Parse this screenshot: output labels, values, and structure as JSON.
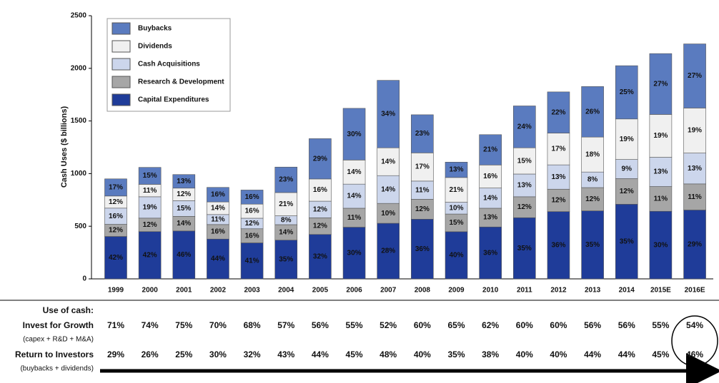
{
  "chart_data": {
    "type": "stacked_bar",
    "y_label": "Cash Uses ($ billions)",
    "categories": [
      "1999",
      "2000",
      "2001",
      "2002",
      "2003",
      "2004",
      "2005",
      "2006",
      "2007",
      "2008",
      "2009",
      "2010",
      "2011",
      "2012",
      "2013",
      "2014",
      "2015E",
      "2016E"
    ],
    "ylim": [
      0,
      2500
    ],
    "yticks": [
      0,
      500,
      1000,
      1500,
      2000,
      2500
    ],
    "grid": false,
    "legend": "upper left",
    "series": [
      {
        "name": "Capital Expenditures",
        "color": "#1f3c99",
        "values": [
          403,
          449,
          455,
          378,
          342,
          368,
          422,
          491,
          528,
          567,
          448,
          493,
          581,
          639,
          646,
          709,
          642,
          654
        ],
        "value_labels": [
          "42%",
          "42%",
          "46%",
          "44%",
          "41%",
          "35%",
          "32%",
          "30%",
          "28%",
          "36%",
          "40%",
          "36%",
          "35%",
          "36%",
          "35%",
          "35%",
          "30%",
          "29%"
        ]
      },
      {
        "name": "Research & Development",
        "color": "#a6a6a6",
        "values": [
          115,
          128,
          139,
          138,
          134,
          147,
          158,
          180,
          189,
          189,
          168,
          178,
          199,
          213,
          221,
          243,
          235,
          248
        ],
        "value_labels": [
          "12%",
          "12%",
          "14%",
          "16%",
          "16%",
          "14%",
          "12%",
          "11%",
          "10%",
          "12%",
          "15%",
          "13%",
          "12%",
          "12%",
          "12%",
          "12%",
          "11%",
          "11%"
        ]
      },
      {
        "name": "Cash Acquisitions",
        "color": "#ccd6ec",
        "values": [
          154,
          203,
          149,
          95,
          100,
          84,
          158,
          229,
          264,
          173,
          112,
          192,
          216,
          231,
          148,
          182,
          278,
          293
        ],
        "value_labels": [
          "16%",
          "19%",
          "15%",
          "11%",
          "12%",
          "8%",
          "12%",
          "14%",
          "14%",
          "11%",
          "10%",
          "14%",
          "13%",
          "13%",
          "8%",
          "9%",
          "13%",
          "13%"
        ]
      },
      {
        "name": "Dividends",
        "color": "#f0f0f0",
        "values": [
          115,
          118,
          119,
          120,
          134,
          221,
          211,
          229,
          264,
          268,
          235,
          219,
          249,
          302,
          332,
          385,
          407,
          428
        ],
        "value_labels": [
          "12%",
          "11%",
          "12%",
          "14%",
          "16%",
          "21%",
          "16%",
          "14%",
          "14%",
          "17%",
          "21%",
          "16%",
          "15%",
          "17%",
          "18%",
          "19%",
          "19%",
          "19%"
        ]
      },
      {
        "name": "Buybacks",
        "color": "#5a7bbf",
        "values": [
          163,
          161,
          129,
          138,
          134,
          242,
          383,
          491,
          641,
          362,
          146,
          288,
          398,
          391,
          480,
          506,
          578,
          609
        ],
        "value_labels": [
          "17%",
          "15%",
          "13%",
          "16%",
          "16%",
          "23%",
          "29%",
          "30%",
          "34%",
          "23%",
          "13%",
          "21%",
          "24%",
          "22%",
          "26%",
          "25%",
          "27%",
          "27%"
        ]
      }
    ]
  },
  "table": {
    "title": "Use of cash:",
    "rows": [
      {
        "label": "Invest for Growth",
        "sublabel": "(capex + R&D + M&A)",
        "values": [
          "71%",
          "74%",
          "75%",
          "70%",
          "68%",
          "57%",
          "56%",
          "55%",
          "52%",
          "60%",
          "65%",
          "62%",
          "60%",
          "60%",
          "56%",
          "56%",
          "55%",
          "54%"
        ]
      },
      {
        "label": "Return to Investors",
        "sublabel": "(buybacks + dividends)",
        "values": [
          "29%",
          "26%",
          "25%",
          "30%",
          "32%",
          "43%",
          "44%",
          "45%",
          "48%",
          "40%",
          "35%",
          "38%",
          "40%",
          "40%",
          "44%",
          "44%",
          "45%",
          "46%"
        ]
      }
    ]
  }
}
